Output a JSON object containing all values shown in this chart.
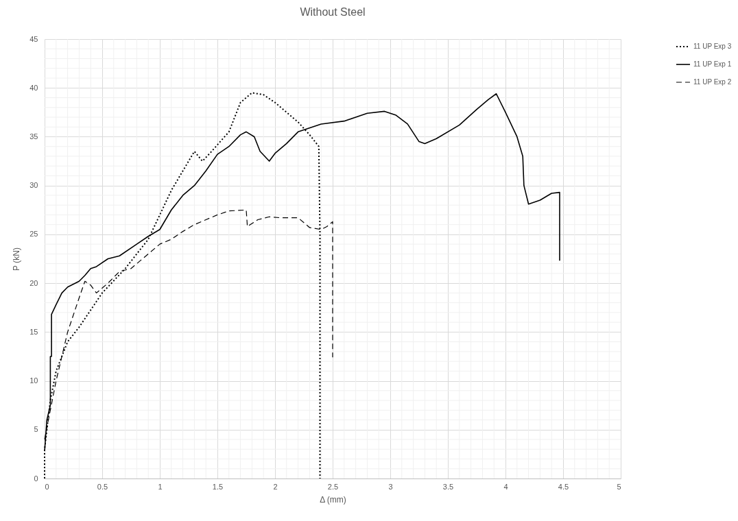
{
  "chart_data": {
    "type": "line",
    "title": "Without Steel",
    "xlabel": "Δ (mm)",
    "ylabel": "P (kN)",
    "xlim": [
      0,
      5
    ],
    "xticks": [
      0,
      0.5,
      1,
      1.5,
      2,
      2.5,
      3,
      3.5,
      4,
      4.5,
      5
    ],
    "ylim": [
      0,
      45
    ],
    "yticks": [
      0,
      5,
      10,
      15,
      20,
      25,
      30,
      35,
      40,
      45
    ],
    "grid": true,
    "legend": "right",
    "marker": "none",
    "series": [
      {
        "name": "11 UP Exp 3",
        "color": "#000000",
        "line_style": "dotted",
        "x": [
          0,
          0,
          0.05,
          0.1,
          0.2,
          0.3,
          0.5,
          0.7,
          0.9,
          1.0,
          1.1,
          1.2,
          1.3,
          1.37,
          1.45,
          1.6,
          1.7,
          1.8,
          1.9,
          2.0,
          2.1,
          2.2,
          2.3,
          2.38,
          2.39,
          2.39
        ],
        "values": [
          0,
          3,
          8,
          11,
          14,
          15.5,
          19,
          21.5,
          24.5,
          27,
          29.5,
          31.5,
          33.5,
          32.5,
          33.5,
          35.5,
          38.5,
          39.5,
          39.3,
          38.5,
          37.5,
          36.5,
          35.2,
          34,
          25,
          0
        ]
      },
      {
        "name": "11 UP Exp 1",
        "color": "#000000",
        "line_style": "solid",
        "x": [
          0,
          0.02,
          0.05,
          0.05,
          0.06,
          0.06,
          0.1,
          0.15,
          0.2,
          0.3,
          0.35,
          0.4,
          0.45,
          0.55,
          0.65,
          0.8,
          0.9,
          1.0,
          1.1,
          1.2,
          1.3,
          1.4,
          1.5,
          1.6,
          1.7,
          1.75,
          1.82,
          1.87,
          1.95,
          2.0,
          2.1,
          2.2,
          2.4,
          2.6,
          2.8,
          2.95,
          3.05,
          3.15,
          3.25,
          3.3,
          3.4,
          3.6,
          3.75,
          3.85,
          3.92,
          4.0,
          4.1,
          4.15,
          4.16,
          4.2,
          4.3,
          4.4,
          4.47,
          4.47
        ],
        "values": [
          2.8,
          6,
          7.5,
          12.5,
          12.5,
          16.8,
          17.8,
          19,
          19.6,
          20.2,
          20.8,
          21.5,
          21.7,
          22.5,
          22.8,
          24,
          24.8,
          25.5,
          27.5,
          29,
          30,
          31.5,
          33.2,
          34,
          35.2,
          35.5,
          35,
          33.5,
          32.5,
          33.3,
          34.3,
          35.5,
          36.3,
          36.6,
          37.4,
          37.6,
          37.2,
          36.3,
          34.5,
          34.3,
          34.8,
          36.2,
          37.8,
          38.8,
          39.4,
          37.5,
          35,
          33,
          30,
          28.1,
          28.5,
          29.2,
          29.3,
          22.3
        ]
      },
      {
        "name": "11 UP Exp 2",
        "color": "#000000",
        "line_style": "dashed",
        "x": [
          0,
          0.05,
          0.1,
          0.2,
          0.3,
          0.35,
          0.4,
          0.45,
          0.55,
          0.65,
          0.75,
          0.9,
          1.0,
          1.1,
          1.2,
          1.3,
          1.4,
          1.5,
          1.6,
          1.75,
          1.76,
          1.85,
          1.95,
          2.05,
          2.2,
          2.3,
          2.4,
          2.45,
          2.5,
          2.5
        ],
        "values": [
          4,
          7,
          10,
          15,
          18.5,
          20.2,
          19.8,
          19,
          20,
          21.2,
          21.5,
          23,
          24,
          24.5,
          25.3,
          26,
          26.5,
          27,
          27.4,
          27.5,
          25.8,
          26.5,
          26.8,
          26.7,
          26.7,
          25.7,
          25.5,
          25.8,
          26.3,
          12.4
        ]
      }
    ]
  }
}
